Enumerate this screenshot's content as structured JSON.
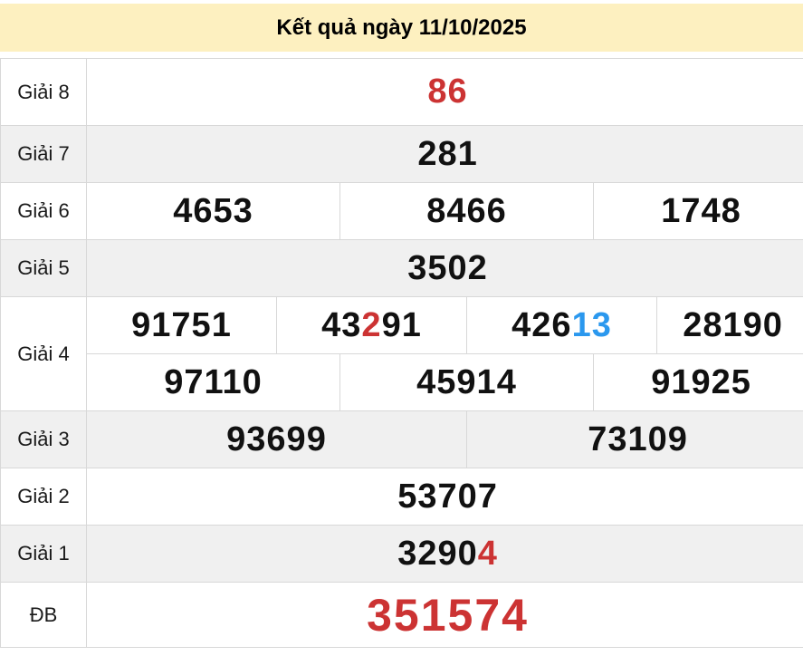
{
  "page": {
    "title": "Kết quả ngày 11/10/2025"
  },
  "colors": {
    "red": "#cc3333",
    "blue": "#2b98ee",
    "header_bg": "#fdf0c0",
    "row_shade": "#f0f0f0",
    "border": "#d8d8d8"
  },
  "results": {
    "rows": [
      {
        "label": "Giải 8",
        "shade": false,
        "lines": [
          {
            "cells": [
              {
                "span": 12,
                "value": "86",
                "color": "red"
              }
            ]
          }
        ]
      },
      {
        "label": "Giải 7",
        "shade": true,
        "lines": [
          {
            "cells": [
              {
                "span": 12,
                "value": "281"
              }
            ]
          }
        ]
      },
      {
        "label": "Giải 6",
        "shade": false,
        "lines": [
          {
            "cells": [
              {
                "span": 4,
                "value": "4653"
              },
              {
                "span": 4,
                "value": "8466"
              },
              {
                "span": 4,
                "value": "1748"
              }
            ]
          }
        ]
      },
      {
        "label": "Giải 5",
        "shade": true,
        "lines": [
          {
            "cells": [
              {
                "span": 12,
                "value": "3502"
              }
            ]
          }
        ]
      },
      {
        "label": "Giải 4",
        "shade": false,
        "lines": [
          {
            "cells": [
              {
                "span": 3,
                "value": "91751"
              },
              {
                "span": 3,
                "value": "43291",
                "parts": [
                  {
                    "text": "43"
                  },
                  {
                    "text": "2",
                    "color": "red"
                  },
                  {
                    "text": "91"
                  }
                ]
              },
              {
                "span": 3,
                "value": "42613",
                "parts": [
                  {
                    "text": "426"
                  },
                  {
                    "text": "13",
                    "color": "blue"
                  }
                ]
              },
              {
                "span": 3,
                "value": "28190"
              }
            ]
          },
          {
            "cells": [
              {
                "span": 4,
                "value": "97110"
              },
              {
                "span": 4,
                "value": "45914"
              },
              {
                "span": 4,
                "value": "91925"
              }
            ]
          }
        ]
      },
      {
        "label": "Giải 3",
        "shade": true,
        "lines": [
          {
            "cells": [
              {
                "span": 6,
                "value": "93699"
              },
              {
                "span": 6,
                "value": "73109"
              }
            ]
          }
        ]
      },
      {
        "label": "Giải 2",
        "shade": false,
        "lines": [
          {
            "cells": [
              {
                "span": 12,
                "value": "53707"
              }
            ]
          }
        ]
      },
      {
        "label": "Giải 1",
        "shade": true,
        "lines": [
          {
            "cells": [
              {
                "span": 12,
                "value": "32904",
                "parts": [
                  {
                    "text": "3290"
                  },
                  {
                    "text": "4",
                    "color": "red"
                  }
                ]
              }
            ]
          }
        ]
      },
      {
        "label": "ĐB",
        "shade": false,
        "big": true,
        "lines": [
          {
            "cells": [
              {
                "span": 12,
                "value": "351574",
                "color": "red"
              }
            ]
          }
        ]
      }
    ]
  }
}
